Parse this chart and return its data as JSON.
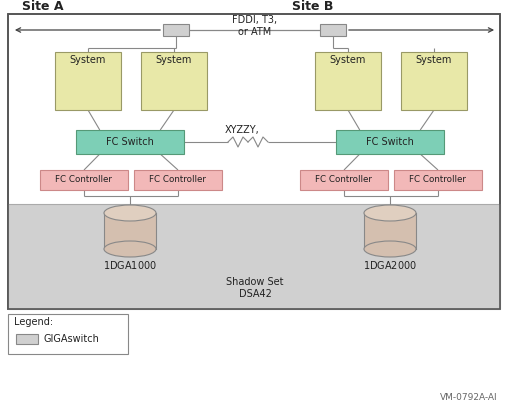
{
  "fig_width": 5.1,
  "fig_height": 4.04,
  "dpi": 100,
  "bg_color": "#ffffff",
  "system_fill": "#e8e8a8",
  "system_border": "#999966",
  "fc_switch_fill": "#7dcfb6",
  "fc_switch_border": "#559977",
  "fc_controller_fill": "#f2b8b8",
  "fc_controller_border": "#cc8888",
  "shadow_set_fill": "#d0d0d0",
  "disk_fill_top": "#e0cfc0",
  "disk_fill_body": "#d4bfaf",
  "disk_border": "#888888",
  "gigaswitch_fill": "#d0d0d0",
  "gigaswitch_border": "#888888",
  "line_color": "#888888",
  "arrow_color": "#444444",
  "text_color": "#222222",
  "outer_border": "#555555",
  "site_a_label": "Site A",
  "site_b_label": "Site B",
  "fddi_label": "FDDI, T3,\nor ATM",
  "xyzzy_label": "XYZZY,",
  "shadow_label": "Shadow Set\nDSA42",
  "legend_label": "Legend:",
  "gigaswitch_legend_label": "GIGAswitch",
  "vm_label": "VM-0792A-AI",
  "label_fs": 7.0,
  "site_fs": 9.0,
  "vm_fs": 6.5
}
